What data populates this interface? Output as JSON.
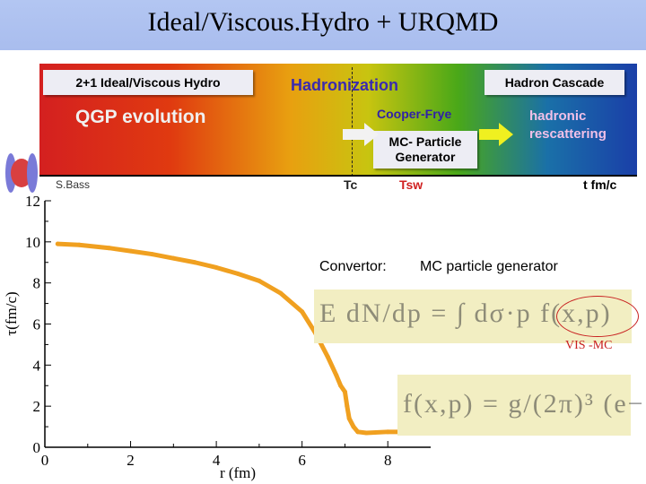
{
  "title": "Ideal/Viscous.Hydro + URQMD",
  "banner": {
    "ideal_label": "2+1 Ideal/Viscous Hydro",
    "hadronization": "Hadronization",
    "cascade_label": "Hadron Cascade",
    "qgp_label": "QGP evolution",
    "cooper_frye": "Cooper-Frye",
    "rescatter_line1": "hadronic",
    "rescatter_line2": "rescattering",
    "mc_line1": "MC- Particle",
    "mc_line2": "Generator",
    "credit": "S.Bass",
    "tc": "Tc",
    "tsw": "Tsw",
    "t_axis": "t fm/c",
    "colors": {
      "red": "#d42020",
      "green": "#4aa818",
      "blue": "#1a3fa8"
    }
  },
  "convertor": {
    "label": "Convertor:",
    "generator": "MC particle generator",
    "vis_mc": "VIS -MC"
  },
  "chart_data": {
    "type": "line",
    "xlabel": "r (fm)",
    "ylabel": "τ(fm/c)",
    "xlim": [
      0,
      9
    ],
    "ylim": [
      0,
      12
    ],
    "xticks": [
      "0",
      "2",
      "4",
      "6",
      "8"
    ],
    "yticks": [
      "0",
      "2",
      "4",
      "6",
      "8",
      "10",
      "12"
    ],
    "color": "#f0a020",
    "series": [
      {
        "x": [
          0.3,
          0.8,
          1.5,
          2.0,
          2.5,
          3.0,
          3.5,
          4.0,
          4.5,
          5.0,
          5.5,
          6.0,
          6.3,
          6.6,
          6.8,
          6.9,
          7.0,
          7.05,
          7.1,
          7.2,
          7.3,
          7.5,
          8.0,
          8.5
        ],
        "y": [
          9.9,
          9.85,
          9.7,
          9.55,
          9.4,
          9.2,
          9.0,
          8.75,
          8.45,
          8.1,
          7.5,
          6.6,
          5.6,
          4.4,
          3.5,
          3.0,
          2.7,
          2.0,
          1.4,
          1.0,
          0.75,
          0.7,
          0.75,
          0.75
        ]
      }
    ]
  }
}
